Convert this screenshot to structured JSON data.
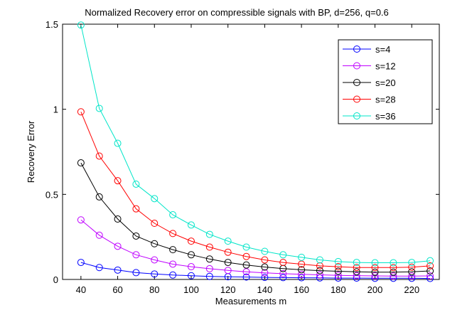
{
  "chart_data": {
    "type": "line",
    "title": "Normalized Recovery error on compressible signals with BP, d=256, q=0.6",
    "xlabel": "Measurements m",
    "ylabel": "Recovery Error",
    "xlim": [
      30,
      235
    ],
    "ylim": [
      0,
      1.5
    ],
    "x_ticks": [
      40,
      60,
      80,
      100,
      120,
      140,
      160,
      180,
      200,
      220
    ],
    "x_tick_labels": [
      "40",
      "60",
      "80",
      "100",
      "120",
      "140",
      "160",
      "180",
      "200",
      "220"
    ],
    "y_ticks": [
      0,
      0.5,
      1,
      1.5
    ],
    "y_tick_labels": [
      "0",
      "0.5",
      "1",
      "1.5"
    ],
    "legend_position": "top-right",
    "x": [
      40,
      50,
      60,
      70,
      80,
      90,
      100,
      110,
      120,
      130,
      140,
      150,
      160,
      170,
      180,
      190,
      200,
      210,
      220,
      230
    ],
    "series": [
      {
        "name": "s=4",
        "color": "#0000ff",
        "values": [
          0.1,
          0.07,
          0.055,
          0.04,
          0.032,
          0.026,
          0.022,
          0.018,
          0.016,
          0.014,
          0.012,
          0.011,
          0.01,
          0.009,
          0.008,
          0.008,
          0.007,
          0.007,
          0.007,
          0.006
        ]
      },
      {
        "name": "s=12",
        "color": "#bf00ff",
        "values": [
          0.35,
          0.26,
          0.195,
          0.145,
          0.115,
          0.09,
          0.075,
          0.063,
          0.053,
          0.045,
          0.039,
          0.034,
          0.03,
          0.027,
          0.024,
          0.022,
          0.021,
          0.02,
          0.02,
          0.021
        ]
      },
      {
        "name": "s=20",
        "color": "#000000",
        "values": [
          0.685,
          0.485,
          0.355,
          0.255,
          0.21,
          0.175,
          0.145,
          0.12,
          0.1,
          0.085,
          0.073,
          0.064,
          0.057,
          0.052,
          0.048,
          0.045,
          0.043,
          0.043,
          0.045,
          0.05
        ]
      },
      {
        "name": "s=28",
        "color": "#ff0000",
        "values": [
          0.985,
          0.725,
          0.58,
          0.415,
          0.33,
          0.27,
          0.225,
          0.19,
          0.16,
          0.135,
          0.115,
          0.1,
          0.09,
          0.08,
          0.075,
          0.07,
          0.07,
          0.07,
          0.072,
          0.08
        ]
      },
      {
        "name": "s=36",
        "color": "#00e5c8",
        "values": [
          1.495,
          1.005,
          0.8,
          0.56,
          0.475,
          0.38,
          0.32,
          0.265,
          0.225,
          0.19,
          0.165,
          0.145,
          0.13,
          0.115,
          0.105,
          0.1,
          0.098,
          0.098,
          0.1,
          0.11
        ]
      }
    ]
  }
}
